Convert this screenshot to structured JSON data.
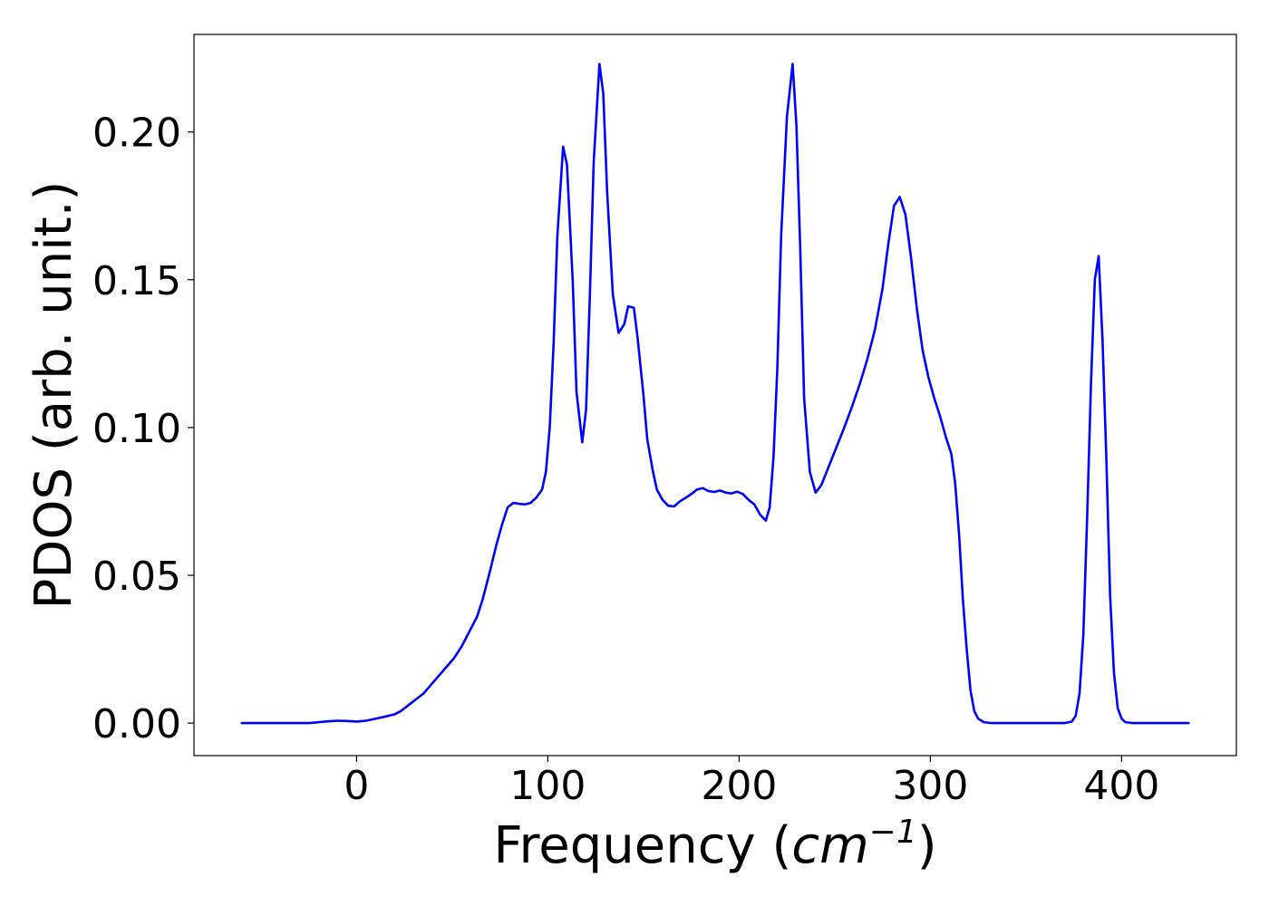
{
  "chart_data": {
    "type": "line",
    "title": "",
    "xlabel": "Frequency (",
    "xlabel_unit": "cm",
    "xlabel_unit_exponent": "−1",
    "xlabel_suffix": ")",
    "ylabel": "PDOS (arb. unit.)",
    "xlim": [
      -85,
      460
    ],
    "ylim": [
      -0.011,
      0.233
    ],
    "x_ticks": [
      0,
      100,
      200,
      300,
      400
    ],
    "x_tick_labels": [
      "0",
      "100",
      "200",
      "300",
      "400"
    ],
    "y_ticks": [
      0.0,
      0.05,
      0.1,
      0.15,
      0.2
    ],
    "y_tick_labels": [
      "0.00",
      "0.05",
      "0.10",
      "0.15",
      "0.20"
    ],
    "grid": false,
    "series": [
      {
        "color": "#0000ff",
        "points": [
          [
            -60,
            0.0
          ],
          [
            -40,
            0.0
          ],
          [
            -25,
            0.0
          ],
          [
            -15,
            0.0006
          ],
          [
            -10,
            0.0008
          ],
          [
            -5,
            0.0007
          ],
          [
            0,
            0.0005
          ],
          [
            5,
            0.0008
          ],
          [
            10,
            0.0015
          ],
          [
            15,
            0.0022
          ],
          [
            20,
            0.003
          ],
          [
            23,
            0.004
          ],
          [
            27,
            0.006
          ],
          [
            31,
            0.008
          ],
          [
            35,
            0.01
          ],
          [
            39,
            0.013
          ],
          [
            43,
            0.016
          ],
          [
            47,
            0.019
          ],
          [
            51,
            0.022
          ],
          [
            55,
            0.026
          ],
          [
            59,
            0.031
          ],
          [
            63,
            0.036
          ],
          [
            66,
            0.042
          ],
          [
            70,
            0.052
          ],
          [
            73,
            0.06
          ],
          [
            76,
            0.067
          ],
          [
            79,
            0.073
          ],
          [
            82,
            0.0745
          ],
          [
            85,
            0.0742
          ],
          [
            88,
            0.074
          ],
          [
            91,
            0.0745
          ],
          [
            94,
            0.0763
          ],
          [
            97,
            0.079
          ],
          [
            99,
            0.085
          ],
          [
            101,
            0.1
          ],
          [
            103,
            0.128
          ],
          [
            105,
            0.165
          ],
          [
            108,
            0.195
          ],
          [
            110,
            0.189
          ],
          [
            113,
            0.15
          ],
          [
            115,
            0.112
          ],
          [
            118,
            0.095
          ],
          [
            120,
            0.106
          ],
          [
            122,
            0.145
          ],
          [
            124,
            0.19
          ],
          [
            127,
            0.223
          ],
          [
            129,
            0.213
          ],
          [
            131,
            0.18
          ],
          [
            134,
            0.145
          ],
          [
            137,
            0.132
          ],
          [
            140,
            0.135
          ],
          [
            142,
            0.141
          ],
          [
            145,
            0.1405
          ],
          [
            147,
            0.13
          ],
          [
            150,
            0.111
          ],
          [
            152,
            0.096
          ],
          [
            155,
            0.085
          ],
          [
            157,
            0.079
          ],
          [
            160,
            0.0755
          ],
          [
            163,
            0.0735
          ],
          [
            166,
            0.0733
          ],
          [
            169,
            0.075
          ],
          [
            172,
            0.0762
          ],
          [
            175,
            0.0775
          ],
          [
            178,
            0.079
          ],
          [
            181,
            0.0795
          ],
          [
            184,
            0.0785
          ],
          [
            187,
            0.0782
          ],
          [
            190,
            0.0787
          ],
          [
            193,
            0.078
          ],
          [
            196,
            0.0777
          ],
          [
            199,
            0.0783
          ],
          [
            202,
            0.0775
          ],
          [
            205,
            0.0755
          ],
          [
            208,
            0.074
          ],
          [
            211,
            0.0705
          ],
          [
            214,
            0.0685
          ],
          [
            216,
            0.073
          ],
          [
            218,
            0.09
          ],
          [
            220,
            0.12
          ],
          [
            222,
            0.165
          ],
          [
            225,
            0.205
          ],
          [
            228,
            0.223
          ],
          [
            230,
            0.202
          ],
          [
            232,
            0.16
          ],
          [
            234,
            0.11
          ],
          [
            237,
            0.085
          ],
          [
            240,
            0.078
          ],
          [
            243,
            0.0805
          ],
          [
            247,
            0.087
          ],
          [
            251,
            0.0935
          ],
          [
            255,
            0.1
          ],
          [
            259,
            0.107
          ],
          [
            263,
            0.1145
          ],
          [
            267,
            0.123
          ],
          [
            271,
            0.133
          ],
          [
            275,
            0.147
          ],
          [
            278,
            0.162
          ],
          [
            281,
            0.175
          ],
          [
            284,
            0.178
          ],
          [
            287,
            0.172
          ],
          [
            290,
            0.157
          ],
          [
            293,
            0.14
          ],
          [
            296,
            0.126
          ],
          [
            299,
            0.117
          ],
          [
            302,
            0.11
          ],
          [
            305,
            0.104
          ],
          [
            308,
            0.097
          ],
          [
            311,
            0.091
          ],
          [
            313,
            0.081
          ],
          [
            315,
            0.064
          ],
          [
            317,
            0.042
          ],
          [
            319,
            0.025
          ],
          [
            321,
            0.011
          ],
          [
            323,
            0.004
          ],
          [
            325,
            0.0015
          ],
          [
            328,
            0.0003
          ],
          [
            332,
            0.0
          ],
          [
            350,
            0.0
          ],
          [
            370,
            0.0
          ],
          [
            374,
            0.0005
          ],
          [
            376,
            0.0025
          ],
          [
            378,
            0.01
          ],
          [
            380,
            0.03
          ],
          [
            382,
            0.07
          ],
          [
            384,
            0.115
          ],
          [
            386,
            0.15
          ],
          [
            388,
            0.158
          ],
          [
            390,
            0.13
          ],
          [
            392,
            0.09
          ],
          [
            394,
            0.043
          ],
          [
            396,
            0.017
          ],
          [
            398,
            0.005
          ],
          [
            400,
            0.0015
          ],
          [
            402,
            0.0003
          ],
          [
            406,
            0.0
          ],
          [
            420,
            0.0
          ],
          [
            435,
            0.0
          ]
        ]
      }
    ]
  }
}
